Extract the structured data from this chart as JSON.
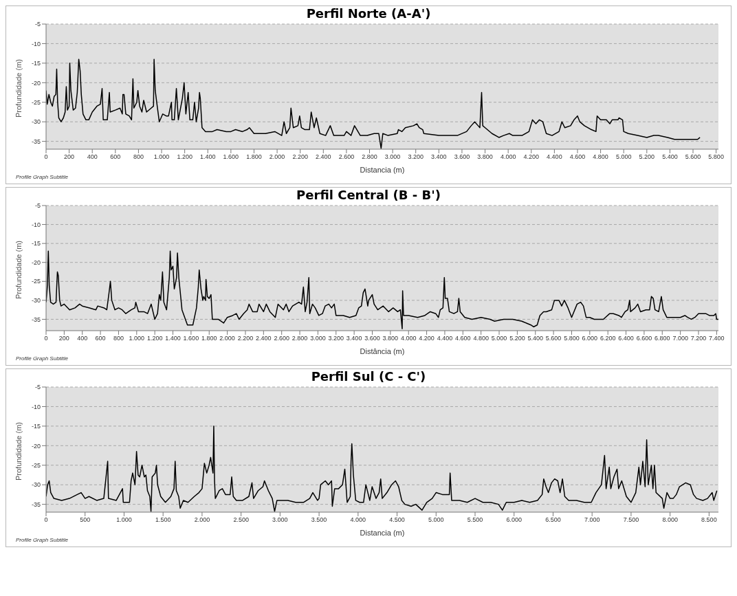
{
  "chart_data": [
    {
      "type": "line",
      "title": "Perfil Norte (A-A')",
      "subtitle": "Profile Graph Subtitle",
      "xlabel": "Distancia (m)",
      "ylabel": "Profundidade (m)",
      "grid": "y",
      "marker": "none",
      "line_style": "solid",
      "xlim": [
        0,
        5820
      ],
      "ylim": [
        -37,
        -5
      ],
      "yticks": [
        -5,
        -10,
        -15,
        -20,
        -25,
        -30,
        -35
      ],
      "xticks": [
        0,
        200,
        400,
        600,
        800,
        {
          "value": 1000,
          "label": "1.000"
        },
        {
          "value": 1200,
          "label": "1.200"
        },
        {
          "value": 1400,
          "label": "1.400"
        },
        {
          "value": 1600,
          "label": "1.600"
        },
        {
          "value": 1800,
          "label": "1.800"
        },
        {
          "value": 2000,
          "label": "2.000"
        },
        {
          "value": 2200,
          "label": "2.200"
        },
        {
          "value": 2400,
          "label": "2.400"
        },
        {
          "value": 2600,
          "label": "2.600"
        },
        {
          "value": 2800,
          "label": "2.800"
        },
        {
          "value": 3000,
          "label": "3.000"
        },
        {
          "value": 3200,
          "label": "3.200"
        },
        {
          "value": 3400,
          "label": "3.400"
        },
        {
          "value": 3600,
          "label": "3.600"
        },
        {
          "value": 3800,
          "label": "3.800"
        },
        {
          "value": 4000,
          "label": "4.000"
        },
        {
          "value": 4200,
          "label": "4.200"
        },
        {
          "value": 4400,
          "label": "4.400"
        },
        {
          "value": 4600,
          "label": "4.600"
        },
        {
          "value": 4800,
          "label": "4.800"
        },
        {
          "value": 5000,
          "label": "5.000"
        },
        {
          "value": 5200,
          "label": "5.200"
        },
        {
          "value": 5400,
          "label": "5.400"
        },
        {
          "value": 5600,
          "label": "5.600"
        },
        {
          "value": 5800,
          "label": "5.800"
        }
      ],
      "series": [
        {
          "color": "#000000",
          "x": [
            0,
            10,
            25,
            40,
            55,
            70,
            85,
            92,
            100,
            110,
            130,
            150,
            165,
            175,
            185,
            200,
            205,
            215,
            235,
            255,
            270,
            283,
            295,
            305,
            320,
            345,
            370,
            400,
            440,
            470,
            485,
            495,
            530,
            548,
            555,
            600,
            640,
            660,
            665,
            675,
            690,
            720,
            740,
            752,
            760,
            785,
            795,
            810,
            830,
            845,
            870,
            910,
            930,
            935,
            945,
            960,
            980,
            1010,
            1040,
            1060,
            1085,
            1090,
            1110,
            1128,
            1145,
            1180,
            1195,
            1210,
            1230,
            1245,
            1270,
            1285,
            1300,
            1320,
            1328,
            1335,
            1350,
            1380,
            1440,
            1480,
            1560,
            1600,
            1640,
            1700,
            1740,
            1760,
            1800,
            1900,
            1980,
            2040,
            2060,
            2080,
            2110,
            2120,
            2140,
            2180,
            2195,
            2210,
            2240,
            2280,
            2295,
            2320,
            2340,
            2370,
            2420,
            2460,
            2490,
            2520,
            2580,
            2600,
            2640,
            2670,
            2720,
            2780,
            2840,
            2880,
            2900,
            2915,
            2960,
            3040,
            3050,
            3080,
            3110,
            3180,
            3210,
            3230,
            3260,
            3270,
            3400,
            3480,
            3560,
            3640,
            3680,
            3710,
            3740,
            3755,
            3770,
            3780,
            3800,
            3860,
            3920,
            3960,
            4010,
            4040,
            4120,
            4180,
            4210,
            4240,
            4270,
            4300,
            4330,
            4380,
            4440,
            4465,
            4490,
            4540,
            4570,
            4600,
            4620,
            4660,
            4720,
            4760,
            4770,
            4800,
            4850,
            4880,
            4900,
            4950,
            4960,
            4990,
            5000,
            5040,
            5120,
            5200,
            5260,
            5300,
            5380,
            5440,
            5500,
            5600,
            5640,
            5660
          ],
          "values": [
            -22,
            -25.5,
            -23,
            -25,
            -26,
            -23.5,
            -23,
            -16.5,
            -25,
            -29,
            -30,
            -29,
            -27.5,
            -21,
            -27,
            -26,
            -15,
            -22,
            -27,
            -26.5,
            -22.5,
            -14,
            -17,
            -23,
            -28,
            -29.5,
            -29.5,
            -27.5,
            -26,
            -25.5,
            -21.5,
            -29.5,
            -29.5,
            -22.5,
            -27.5,
            -27,
            -26.5,
            -28,
            -23,
            -23,
            -28,
            -28.5,
            -29.5,
            -19,
            -26.5,
            -25,
            -22,
            -26,
            -27.5,
            -24.5,
            -27.5,
            -26.5,
            -26,
            -14,
            -22,
            -25.5,
            -30,
            -28,
            -28.5,
            -28.5,
            -25,
            -29.5,
            -29.5,
            -21.5,
            -29.5,
            -24,
            -20,
            -28,
            -22.5,
            -29.5,
            -29.5,
            -25,
            -30,
            -26.5,
            -22.5,
            -24,
            -31.5,
            -32.5,
            -32.5,
            -32,
            -32.5,
            -32.5,
            -32,
            -32.5,
            -32,
            -31.5,
            -33,
            -33,
            -32.5,
            -33.5,
            -30,
            -33,
            -31.5,
            -26.5,
            -31.5,
            -31,
            -28.5,
            -31.5,
            -32,
            -32,
            -27.5,
            -31.5,
            -29,
            -33,
            -33.5,
            -31,
            -33.5,
            -33.5,
            -33.5,
            -32.5,
            -33.5,
            -31,
            -33.5,
            -33.5,
            -33,
            -33,
            -36.8,
            -33,
            -33.5,
            -33,
            -32,
            -32.5,
            -31.5,
            -31,
            -30.5,
            -31.5,
            -32,
            -33,
            -33.5,
            -33.5,
            -33.5,
            -32.5,
            -31,
            -30,
            -31,
            -31.5,
            -22.5,
            -31,
            -31.5,
            -33,
            -34,
            -33.5,
            -33,
            -33.5,
            -33.5,
            -32.5,
            -29.5,
            -30.5,
            -29.5,
            -30,
            -33,
            -33.5,
            -32.5,
            -30,
            -31.5,
            -31,
            -29.5,
            -28.5,
            -30,
            -31,
            -32,
            -32.5,
            -28.5,
            -29.5,
            -29.5,
            -30.5,
            -29.5,
            -29.5,
            -29,
            -29.5,
            -32.5,
            -33,
            -33.5,
            -34,
            -33.5,
            -33.5,
            -34,
            -34.5,
            -34.5,
            -34.5,
            -34.5,
            -34
          ]
        }
      ]
    },
    {
      "type": "line",
      "title": "Perfil Central (B - B')",
      "subtitle": "Profile Graph Subtitle",
      "xlabel": "Distância (m)",
      "ylabel": "Profundidade (m)",
      "grid": "y",
      "marker": "none",
      "line_style": "solid",
      "xlim": [
        0,
        7420
      ],
      "ylim": [
        -38,
        -5
      ],
      "yticks": [
        -5,
        -10,
        -15,
        -20,
        -25,
        -30,
        -35
      ],
      "xticks": [
        0,
        200,
        400,
        600,
        800,
        {
          "value": 1000,
          "label": "1.000"
        },
        {
          "value": 1200,
          "label": "1.200"
        },
        {
          "value": 1400,
          "label": "1.400"
        },
        {
          "value": 1600,
          "label": "1.600"
        },
        {
          "value": 1800,
          "label": "1.800"
        },
        {
          "value": 2000,
          "label": "2.000"
        },
        {
          "value": 2200,
          "label": "2.200"
        },
        {
          "value": 2400,
          "label": "2.400"
        },
        {
          "value": 2600,
          "label": "2.600"
        },
        {
          "value": 2800,
          "label": "2.800"
        },
        {
          "value": 3000,
          "label": "3.000"
        },
        {
          "value": 3200,
          "label": "3.200"
        },
        {
          "value": 3400,
          "label": "3.400"
        },
        {
          "value": 3600,
          "label": "3.600"
        },
        {
          "value": 3800,
          "label": "3.800"
        },
        {
          "value": 4000,
          "label": "4.000"
        },
        {
          "value": 4200,
          "label": "4.200"
        },
        {
          "value": 4400,
          "label": "4.400"
        },
        {
          "value": 4600,
          "label": "4.600"
        },
        {
          "value": 4800,
          "label": "4.800"
        },
        {
          "value": 5000,
          "label": "5.000"
        },
        {
          "value": 5200,
          "label": "5.200"
        },
        {
          "value": 5400,
          "label": "5.400"
        },
        {
          "value": 5600,
          "label": "5.600"
        },
        {
          "value": 5800,
          "label": "5.800"
        },
        {
          "value": 6000,
          "label": "6.000"
        },
        {
          "value": 6200,
          "label": "6.200"
        },
        {
          "value": 6400,
          "label": "6.400"
        },
        {
          "value": 6600,
          "label": "6.600"
        },
        {
          "value": 6800,
          "label": "6.800"
        },
        {
          "value": 7000,
          "label": "7.000"
        },
        {
          "value": 7200,
          "label": "7.200"
        },
        {
          "value": 7400,
          "label": "7.400"
        }
      ],
      "series": [
        {
          "color": "#000000",
          "x": [
            0,
            15,
            25,
            35,
            50,
            80,
            110,
            125,
            135,
            150,
            165,
            200,
            260,
            320,
            370,
            400,
            480,
            550,
            570,
            640,
            670,
            695,
            710,
            725,
            760,
            800,
            840,
            880,
            940,
            980,
            990,
            1020,
            1080,
            1120,
            1160,
            1200,
            1230,
            1250,
            1265,
            1285,
            1300,
            1330,
            1360,
            1370,
            1380,
            1400,
            1415,
            1440,
            1450,
            1465,
            1500,
            1560,
            1620,
            1660,
            1680,
            1690,
            1710,
            1730,
            1740,
            1760,
            1765,
            1780,
            1800,
            1820,
            1835,
            1900,
            1960,
            2000,
            2060,
            2100,
            2130,
            2180,
            2220,
            2240,
            2280,
            2330,
            2350,
            2400,
            2430,
            2470,
            2530,
            2560,
            2620,
            2650,
            2680,
            2720,
            2790,
            2820,
            2840,
            2860,
            2880,
            2900,
            2910,
            2940,
            2970,
            3010,
            3050,
            3080,
            3120,
            3150,
            3180,
            3200,
            3280,
            3350,
            3420,
            3450,
            3480,
            3500,
            3520,
            3550,
            3560,
            3600,
            3620,
            3660,
            3720,
            3780,
            3830,
            3880,
            3910,
            3930,
            3935,
            3945,
            4000,
            4100,
            4180,
            4240,
            4300,
            4330,
            4350,
            4380,
            4395,
            4405,
            4430,
            4450,
            4500,
            4540,
            4555,
            4570,
            4620,
            4700,
            4800,
            4900,
            4950,
            5050,
            5150,
            5250,
            5300,
            5350,
            5380,
            5420,
            5450,
            5490,
            5520,
            5580,
            5610,
            5660,
            5690,
            5720,
            5760,
            5800,
            5860,
            5900,
            5930,
            5960,
            6000,
            6050,
            6150,
            6220,
            6260,
            6320,
            6350,
            6390,
            6420,
            6440,
            6450,
            6500,
            6530,
            6560,
            6620,
            6660,
            6680,
            6700,
            6720,
            6760,
            6790,
            6810,
            6850,
            7000,
            7050,
            7080,
            7120,
            7160,
            7200,
            7280,
            7320,
            7370,
            7390,
            7400,
            7420
          ],
          "values": [
            -30.5,
            -26,
            -17,
            -26,
            -30.5,
            -31,
            -30.5,
            -22.5,
            -23.5,
            -30,
            -31.5,
            -31,
            -32.5,
            -32,
            -31,
            -31.5,
            -32,
            -32.5,
            -31.5,
            -32,
            -32.5,
            -28,
            -25,
            -30,
            -32.5,
            -32,
            -32.5,
            -33.5,
            -32.5,
            -32,
            -30.5,
            -33,
            -33,
            -33.5,
            -31,
            -35,
            -33.5,
            -28.5,
            -30,
            -22.5,
            -30.5,
            -32.5,
            -24,
            -17,
            -22,
            -21,
            -27,
            -24,
            -17.5,
            -24,
            -32.5,
            -36.5,
            -36.5,
            -32,
            -26.5,
            -22,
            -27,
            -30,
            -29,
            -30,
            -24.5,
            -29,
            -29.5,
            -28.5,
            -35,
            -35,
            -36,
            -34.5,
            -34,
            -33.5,
            -35,
            -33.5,
            -32.5,
            -31,
            -33,
            -33,
            -31,
            -33,
            -31,
            -33,
            -34.5,
            -31,
            -32.5,
            -31,
            -33,
            -31.5,
            -30.5,
            -31,
            -26.5,
            -33,
            -30.5,
            -24,
            -33.5,
            -31,
            -32,
            -34,
            -33.5,
            -31.5,
            -31,
            -32,
            -31,
            -34,
            -34,
            -34.5,
            -34,
            -32,
            -31.5,
            -28,
            -27,
            -31.5,
            -30,
            -28.5,
            -31,
            -32.5,
            -31.5,
            -33,
            -32,
            -33,
            -32.5,
            -37.5,
            -27.5,
            -34,
            -34,
            -34.5,
            -34,
            -33,
            -33.5,
            -34.5,
            -32.5,
            -32,
            -24,
            -29.5,
            -29.5,
            -33,
            -33.5,
            -33,
            -29.5,
            -33,
            -34.5,
            -35,
            -34.5,
            -35,
            -35.5,
            -35,
            -35,
            -35.5,
            -36,
            -36.5,
            -37,
            -36.5,
            -34,
            -33,
            -33,
            -32.5,
            -30,
            -30,
            -31.5,
            -30,
            -32,
            -34.5,
            -31,
            -30.5,
            -31.5,
            -34.5,
            -34.5,
            -35,
            -35,
            -33.5,
            -33.5,
            -34,
            -34.5,
            -33,
            -32.5,
            -30,
            -33,
            -32,
            -31,
            -33,
            -32.5,
            -32.5,
            -29,
            -29.5,
            -32.5,
            -33,
            -29,
            -32.5,
            -34.5,
            -34.5,
            -34,
            -34.5,
            -35,
            -34.5,
            -33.5,
            -33.5,
            -34,
            -34,
            -33.5,
            -35,
            -35
          ]
        }
      ]
    },
    {
      "type": "line",
      "title": "Perfil Sul (C - C')",
      "subtitle": "Profile Graph Subtitle",
      "xlabel": "Distancia (m)",
      "ylabel": "Profundidade (m)",
      "grid": "y",
      "marker": "none",
      "line_style": "solid",
      "xlim": [
        0,
        8620
      ],
      "ylim": [
        -37,
        -5
      ],
      "yticks": [
        -5,
        -10,
        -15,
        -20,
        -25,
        -30,
        -35
      ],
      "xticks": [
        0,
        500,
        {
          "value": 1000,
          "label": "1.000"
        },
        {
          "value": 1500,
          "label": "1.500"
        },
        {
          "value": 2000,
          "label": "2.000"
        },
        {
          "value": 2500,
          "label": "2.500"
        },
        {
          "value": 3000,
          "label": "3.000"
        },
        {
          "value": 3500,
          "label": "3.500"
        },
        {
          "value": 4000,
          "label": "4.000"
        },
        {
          "value": 4500,
          "label": "4.500"
        },
        {
          "value": 5000,
          "label": "5.000"
        },
        {
          "value": 5500,
          "label": "5.500"
        },
        {
          "value": 6000,
          "label": "6.000"
        },
        {
          "value": 6500,
          "label": "6.500"
        },
        {
          "value": 7000,
          "label": "7.000"
        },
        {
          "value": 7500,
          "label": "7.500"
        },
        {
          "value": 8000,
          "label": "8.000"
        },
        {
          "value": 8500,
          "label": "8.500"
        }
      ],
      "series": [
        {
          "color": "#000000",
          "x": [
            0,
            20,
            40,
            60,
            100,
            200,
            300,
            400,
            450,
            500,
            550,
            650,
            740,
            790,
            800,
            900,
            980,
            990,
            1070,
            1090,
            1110,
            1140,
            1160,
            1180,
            1200,
            1230,
            1260,
            1280,
            1300,
            1330,
            1345,
            1360,
            1400,
            1415,
            1430,
            1470,
            1530,
            1600,
            1640,
            1655,
            1670,
            1700,
            1720,
            1760,
            1820,
            1900,
            1960,
            2000,
            2030,
            2060,
            2090,
            2110,
            2140,
            2150,
            2160,
            2170,
            2220,
            2260,
            2300,
            2360,
            2380,
            2400,
            2440,
            2520,
            2600,
            2640,
            2660,
            2720,
            2780,
            2800,
            2850,
            2900,
            2930,
            2960,
            3100,
            3200,
            3300,
            3380,
            3420,
            3480,
            3500,
            3520,
            3580,
            3620,
            3660,
            3670,
            3700,
            3750,
            3800,
            3830,
            3860,
            3900,
            3910,
            3920,
            3940,
            3970,
            4020,
            4070,
            4100,
            4150,
            4180,
            4230,
            4270,
            4290,
            4310,
            4370,
            4430,
            4480,
            4520,
            4560,
            4600,
            4680,
            4740,
            4820,
            4880,
            4950,
            5000,
            5080,
            5170,
            5180,
            5200,
            5300,
            5400,
            5500,
            5600,
            5700,
            5800,
            5850,
            5900,
            6000,
            6100,
            6200,
            6300,
            6360,
            6380,
            6410,
            6440,
            6480,
            6520,
            6560,
            6590,
            6620,
            6650,
            6700,
            6800,
            6900,
            6990,
            7050,
            7120,
            7160,
            7180,
            7220,
            7240,
            7280,
            7320,
            7340,
            7380,
            7440,
            7500,
            7560,
            7600,
            7620,
            7650,
            7680,
            7700,
            7720,
            7760,
            7780,
            7800,
            7820,
            7900,
            7920,
            7960,
            8000,
            8040,
            8080,
            8120,
            8200,
            8260,
            8300,
            8340,
            8420,
            8480,
            8540,
            8560,
            8600
          ],
          "values": [
            -33,
            -30,
            -29,
            -32,
            -33.5,
            -34,
            -33.5,
            -32.5,
            -32,
            -33.5,
            -33,
            -34,
            -33.5,
            -24,
            -33.5,
            -34,
            -31,
            -34.5,
            -34.5,
            -29,
            -27,
            -30,
            -21.5,
            -27.5,
            -28,
            -25,
            -28,
            -27.5,
            -31.5,
            -33,
            -36.8,
            -28,
            -27,
            -25,
            -30,
            -33,
            -34.5,
            -33,
            -31,
            -24,
            -31.5,
            -33,
            -36,
            -34,
            -34.5,
            -33,
            -32,
            -31,
            -24.5,
            -27,
            -25,
            -23,
            -27,
            -15,
            -29,
            -33.5,
            -31.5,
            -31,
            -32.5,
            -32.5,
            -28,
            -33,
            -34,
            -34,
            -33,
            -29.5,
            -33.5,
            -31.5,
            -30.5,
            -29,
            -31.5,
            -33.5,
            -36.8,
            -34,
            -34,
            -34.5,
            -34.5,
            -33.5,
            -32,
            -34,
            -33.5,
            -30,
            -29,
            -30,
            -29,
            -35.5,
            -31,
            -31,
            -30,
            -26,
            -34.5,
            -33,
            -24,
            -19.5,
            -27.5,
            -34,
            -34.5,
            -34.5,
            -30,
            -34,
            -30.5,
            -33.5,
            -32,
            -28.5,
            -33.5,
            -32,
            -30,
            -29,
            -30.5,
            -34,
            -35,
            -35.5,
            -35,
            -36.5,
            -34.5,
            -33.5,
            -32,
            -32.5,
            -32.5,
            -27,
            -34,
            -34,
            -34.5,
            -33.5,
            -34.5,
            -34.5,
            -35,
            -36.5,
            -34.5,
            -34.5,
            -34,
            -34.5,
            -34,
            -32.5,
            -28.5,
            -30.5,
            -32,
            -29.5,
            -28.5,
            -29,
            -32,
            -28.5,
            -33,
            -34,
            -34,
            -34.5,
            -34.5,
            -32,
            -30,
            -22.5,
            -31,
            -25.5,
            -31,
            -28,
            -26,
            -31,
            -29,
            -33,
            -34.5,
            -32,
            -25.5,
            -30,
            -24,
            -30.5,
            -18.5,
            -30,
            -25,
            -31,
            -25,
            -32,
            -33.5,
            -36,
            -32,
            -33.5,
            -33.5,
            -32.5,
            -30.5,
            -29.5,
            -30,
            -32.5,
            -33.5,
            -34,
            -33.5,
            -32,
            -34,
            -31.5
          ]
        }
      ]
    }
  ]
}
